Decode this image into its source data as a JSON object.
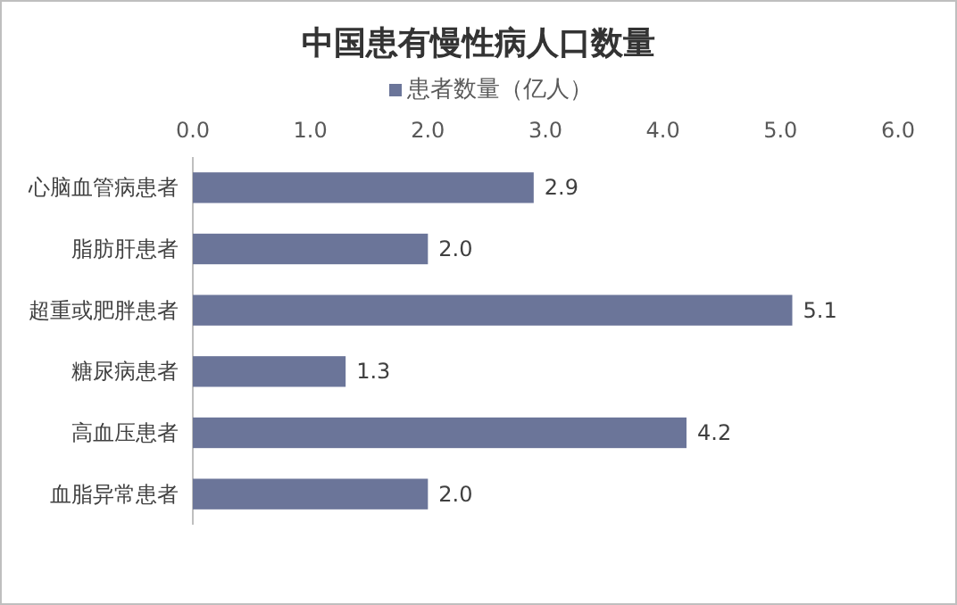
{
  "chart_data": {
    "type": "bar",
    "orientation": "horizontal",
    "title": "中国患有慢性病人口数量",
    "categories": [
      "心脑血管病患者",
      "脂肪肝患者",
      "超重或肥胖患者",
      "糖尿病患者",
      "高血压患者",
      "血脂异常患者"
    ],
    "series": [
      {
        "name": "患者数量（亿人）",
        "color": "#6b7599",
        "values": [
          2.9,
          2.0,
          5.1,
          1.3,
          4.2,
          2.0
        ],
        "value_labels": [
          "2.9",
          "2.0",
          "5.1",
          "1.3",
          "4.2",
          "2.0"
        ]
      }
    ],
    "xlim": [
      0,
      6
    ],
    "xticks": [
      {
        "value": 0,
        "label": "0.0"
      },
      {
        "value": 1,
        "label": "1.0"
      },
      {
        "value": 2,
        "label": "2.0"
      },
      {
        "value": 3,
        "label": "3.0"
      },
      {
        "value": 4,
        "label": "4.0"
      },
      {
        "value": 5,
        "label": "5.0"
      },
      {
        "value": 6,
        "label": "6.0"
      }
    ],
    "legend": "top"
  }
}
